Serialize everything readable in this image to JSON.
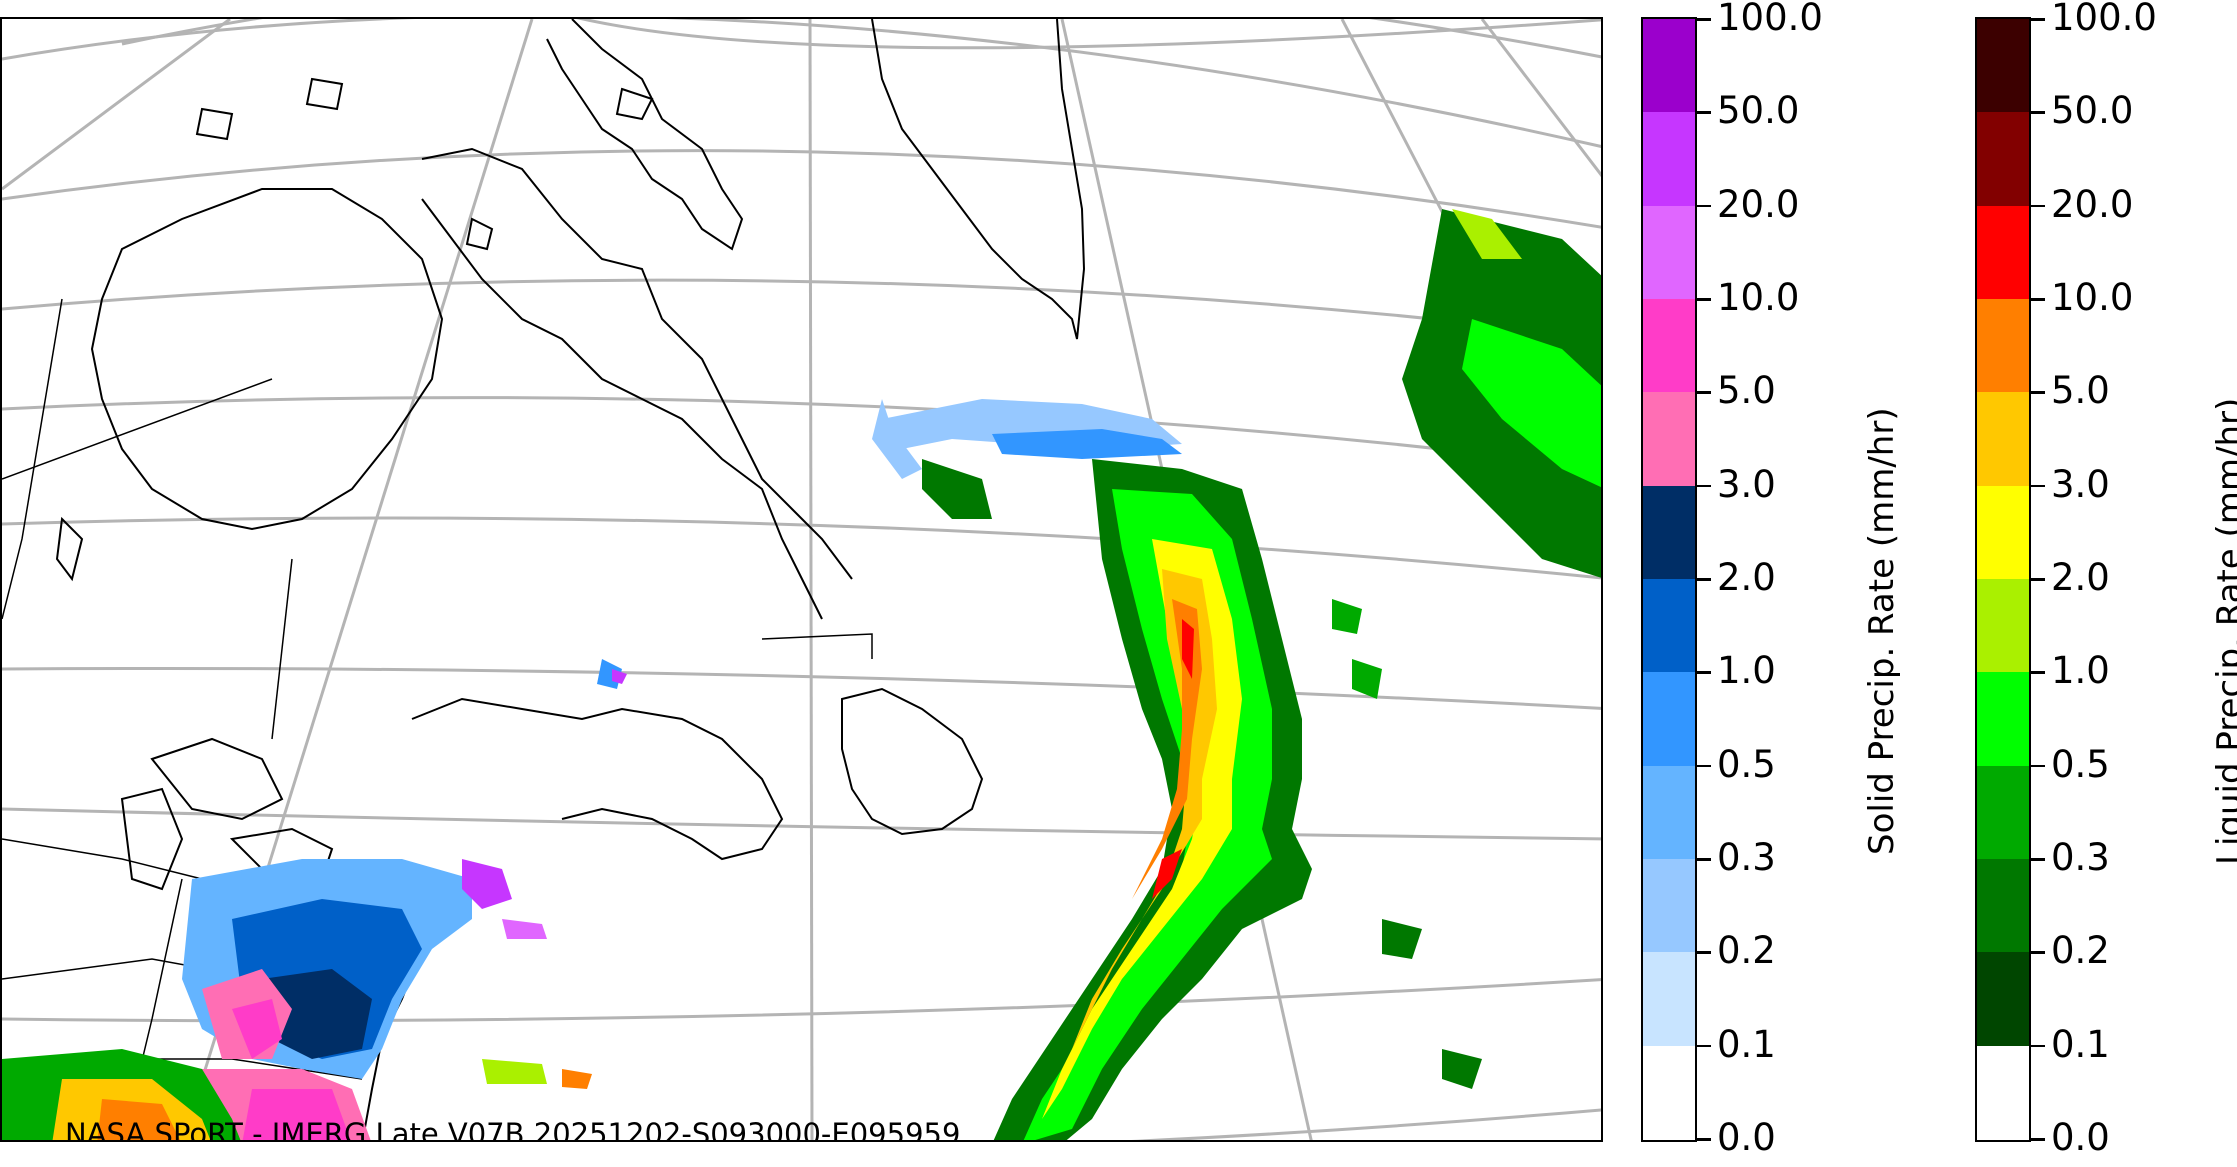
{
  "credit_text": "NASA SPoRT - IMERG Late V07B 20251202-S093000-E095959",
  "solid_colorbar": {
    "title": "Solid Precip. Rate (mm/hr)",
    "tick_labels": [
      "100.0",
      "50.0",
      "20.0",
      "10.0",
      "5.0",
      "3.0",
      "2.0",
      "1.0",
      "0.5",
      "0.3",
      "0.2",
      "0.1",
      "0.0"
    ],
    "colors_top_to_bottom": [
      "#9b00cc",
      "#c636ff",
      "#e066ff",
      "#ff3cc8",
      "#ff6eb4",
      "#002e66",
      "#0060c8",
      "#3296ff",
      "#64b4ff",
      "#96c8ff",
      "#c8e4ff",
      "#ffffff"
    ]
  },
  "liquid_colorbar": {
    "title": "Liquid Precip. Rate (mm/hr)",
    "tick_labels": [
      "100.0",
      "50.0",
      "20.0",
      "10.0",
      "5.0",
      "3.0",
      "2.0",
      "1.0",
      "0.5",
      "0.3",
      "0.2",
      "0.1",
      "0.0"
    ],
    "colors_top_to_bottom": [
      "#3c0000",
      "#820000",
      "#ff0000",
      "#ff7f00",
      "#ffc800",
      "#ffff00",
      "#aaf000",
      "#00ff00",
      "#00aa00",
      "#007800",
      "#004600",
      "#ffffff"
    ]
  }
}
